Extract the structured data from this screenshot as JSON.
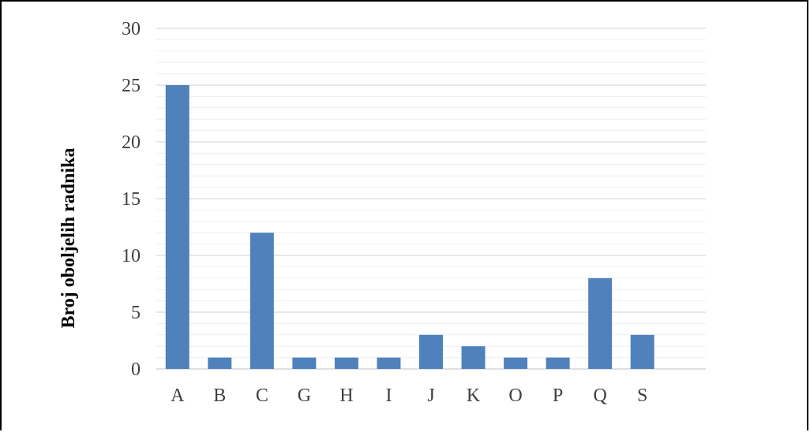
{
  "chart_data": {
    "type": "bar",
    "categories": [
      "A",
      "B",
      "C",
      "G",
      "H",
      "I",
      "J",
      "K",
      "O",
      "P",
      "Q",
      "S"
    ],
    "values": [
      25,
      1,
      12,
      1,
      1,
      1,
      3,
      2,
      1,
      1,
      8,
      3
    ],
    "title": "",
    "xlabel": "",
    "ylabel": "Broj oboljelih radnika",
    "ylim": [
      0,
      30
    ],
    "yticks": [
      0,
      5,
      10,
      15,
      20,
      25,
      30
    ],
    "grid": true,
    "legend": "none",
    "colors": {
      "bar": "#4f81bd",
      "gridline": "#d9d9d9",
      "axis": "#d9d9d9"
    }
  }
}
